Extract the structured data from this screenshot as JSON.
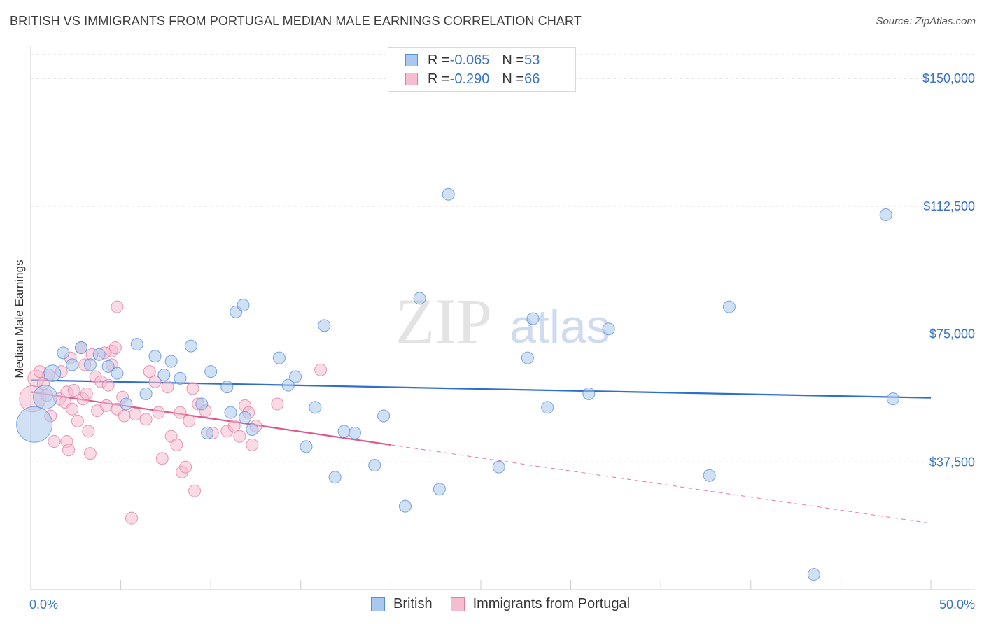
{
  "header": {
    "title": "BRITISH VS IMMIGRANTS FROM PORTUGAL MEDIAN MALE EARNINGS CORRELATION CHART",
    "source": "Source: ZipAtlas.com"
  },
  "watermark": {
    "zip": "ZIP",
    "atlas": "atlas"
  },
  "legend": {
    "rows": [
      {
        "r_label": "R = ",
        "r_value": "-0.065",
        "n_label": "N = ",
        "n_value": "53"
      },
      {
        "r_label": "R = ",
        "r_value": "-0.290",
        "n_label": "N = ",
        "n_value": "66"
      }
    ]
  },
  "bottom_legend": {
    "british": "British",
    "portugal": "Immigrants from Portugal"
  },
  "colors": {
    "british_fill": "#a9c8ef",
    "british_stroke": "#5b8fd4",
    "british_line": "#2f6fcb",
    "portugal_fill": "#f6bcd0",
    "portugal_stroke": "#e07fa2",
    "portugal_line": "#e0578a",
    "tick_text": "#3a74c4",
    "grid": "#d9d9d9"
  },
  "chart_data": {
    "type": "scatter",
    "title": "BRITISH VS IMMIGRANTS FROM PORTUGAL MEDIAN MALE EARNINGS CORRELATION CHART",
    "xlabel": "",
    "ylabel": "Median Male Earnings",
    "xlim": [
      0,
      50
    ],
    "ylim": [
      0,
      157000
    ],
    "x_tick_labels": [
      "0.0%",
      "50.0%"
    ],
    "y_ticks": [
      37500,
      75000,
      112500,
      150000
    ],
    "y_tick_labels": [
      "$37,500",
      "$75,000",
      "$112,500",
      "$150,000"
    ],
    "grid": "horizontal dashed",
    "legend_position": "top-center",
    "series": [
      {
        "name": "British",
        "r": -0.065,
        "n": 53,
        "trend": {
          "x": [
            0,
            50
          ],
          "y": [
            61500,
            56300
          ]
        },
        "points": [
          {
            "x": 0.2,
            "y": 48500,
            "s": 3
          },
          {
            "x": 0.8,
            "y": 56500,
            "s": 2
          },
          {
            "x": 1.2,
            "y": 63500,
            "s": 1.4
          },
          {
            "x": 1.8,
            "y": 69500,
            "s": 1
          },
          {
            "x": 2.3,
            "y": 66000,
            "s": 1
          },
          {
            "x": 2.8,
            "y": 71000,
            "s": 1
          },
          {
            "x": 3.3,
            "y": 66000,
            "s": 1
          },
          {
            "x": 3.8,
            "y": 69000,
            "s": 1
          },
          {
            "x": 4.3,
            "y": 65500,
            "s": 1
          },
          {
            "x": 4.8,
            "y": 63500,
            "s": 1
          },
          {
            "x": 5.3,
            "y": 54500,
            "s": 1
          },
          {
            "x": 5.9,
            "y": 72000,
            "s": 1
          },
          {
            "x": 6.4,
            "y": 57500,
            "s": 1
          },
          {
            "x": 6.9,
            "y": 68500,
            "s": 1
          },
          {
            "x": 7.4,
            "y": 63000,
            "s": 1
          },
          {
            "x": 7.8,
            "y": 67000,
            "s": 1
          },
          {
            "x": 8.3,
            "y": 62000,
            "s": 1
          },
          {
            "x": 8.9,
            "y": 71500,
            "s": 1
          },
          {
            "x": 9.5,
            "y": 54500,
            "s": 1
          },
          {
            "x": 9.8,
            "y": 46000,
            "s": 1
          },
          {
            "x": 10.0,
            "y": 64000,
            "s": 1
          },
          {
            "x": 10.9,
            "y": 59500,
            "s": 1
          },
          {
            "x": 11.1,
            "y": 52000,
            "s": 1
          },
          {
            "x": 11.4,
            "y": 81500,
            "s": 1
          },
          {
            "x": 11.8,
            "y": 83500,
            "s": 1
          },
          {
            "x": 11.9,
            "y": 50500,
            "s": 1
          },
          {
            "x": 12.3,
            "y": 47000,
            "s": 1
          },
          {
            "x": 13.8,
            "y": 68000,
            "s": 1
          },
          {
            "x": 14.3,
            "y": 60000,
            "s": 1
          },
          {
            "x": 14.7,
            "y": 62500,
            "s": 1
          },
          {
            "x": 15.3,
            "y": 42000,
            "s": 1
          },
          {
            "x": 15.8,
            "y": 53500,
            "s": 1
          },
          {
            "x": 16.3,
            "y": 77500,
            "s": 1
          },
          {
            "x": 16.9,
            "y": 33000,
            "s": 1
          },
          {
            "x": 17.4,
            "y": 46500,
            "s": 1
          },
          {
            "x": 18.0,
            "y": 46000,
            "s": 1
          },
          {
            "x": 19.1,
            "y": 36500,
            "s": 1
          },
          {
            "x": 19.6,
            "y": 51000,
            "s": 1
          },
          {
            "x": 20.8,
            "y": 24500,
            "s": 1
          },
          {
            "x": 21.6,
            "y": 85500,
            "s": 1
          },
          {
            "x": 22.7,
            "y": 29500,
            "s": 1
          },
          {
            "x": 23.2,
            "y": 116000,
            "s": 1
          },
          {
            "x": 26.0,
            "y": 36000,
            "s": 1
          },
          {
            "x": 27.6,
            "y": 68000,
            "s": 1
          },
          {
            "x": 27.9,
            "y": 79500,
            "s": 1
          },
          {
            "x": 28.7,
            "y": 53500,
            "s": 1
          },
          {
            "x": 31.0,
            "y": 57500,
            "s": 1
          },
          {
            "x": 32.1,
            "y": 76500,
            "s": 1
          },
          {
            "x": 37.7,
            "y": 33500,
            "s": 1
          },
          {
            "x": 38.8,
            "y": 83000,
            "s": 1
          },
          {
            "x": 43.5,
            "y": 4500,
            "s": 1
          },
          {
            "x": 47.5,
            "y": 110000,
            "s": 1
          },
          {
            "x": 47.9,
            "y": 56000,
            "s": 1
          }
        ]
      },
      {
        "name": "Immigrants from Portugal",
        "r": -0.29,
        "n": 66,
        "trend": {
          "x": [
            0,
            20
          ],
          "y": [
            58000,
            42500
          ],
          "dashed_to": {
            "x": 50,
            "y": 19500
          }
        },
        "points": [
          {
            "x": 0.1,
            "y": 56000,
            "s": 2.2
          },
          {
            "x": 0.3,
            "y": 62000,
            "s": 1.4
          },
          {
            "x": 0.5,
            "y": 64000,
            "s": 1
          },
          {
            "x": 0.7,
            "y": 60500,
            "s": 1
          },
          {
            "x": 0.9,
            "y": 57000,
            "s": 1
          },
          {
            "x": 1.1,
            "y": 51000,
            "s": 1
          },
          {
            "x": 1.3,
            "y": 43500,
            "s": 1
          },
          {
            "x": 1.6,
            "y": 56000,
            "s": 1
          },
          {
            "x": 1.7,
            "y": 64000,
            "s": 1
          },
          {
            "x": 1.9,
            "y": 55000,
            "s": 1
          },
          {
            "x": 2.0,
            "y": 58000,
            "s": 1
          },
          {
            "x": 2.0,
            "y": 43500,
            "s": 1
          },
          {
            "x": 2.1,
            "y": 41000,
            "s": 1
          },
          {
            "x": 2.3,
            "y": 53000,
            "s": 1
          },
          {
            "x": 2.4,
            "y": 58500,
            "s": 1
          },
          {
            "x": 2.6,
            "y": 49500,
            "s": 1
          },
          {
            "x": 2.8,
            "y": 71000,
            "s": 1
          },
          {
            "x": 2.9,
            "y": 56000,
            "s": 1
          },
          {
            "x": 3.1,
            "y": 57500,
            "s": 1
          },
          {
            "x": 3.2,
            "y": 46500,
            "s": 1
          },
          {
            "x": 3.3,
            "y": 40000,
            "s": 1
          },
          {
            "x": 3.4,
            "y": 69000,
            "s": 1
          },
          {
            "x": 3.6,
            "y": 62500,
            "s": 1
          },
          {
            "x": 3.7,
            "y": 52500,
            "s": 1
          },
          {
            "x": 3.9,
            "y": 61000,
            "s": 1
          },
          {
            "x": 4.1,
            "y": 69500,
            "s": 1
          },
          {
            "x": 4.2,
            "y": 54000,
            "s": 1
          },
          {
            "x": 4.3,
            "y": 60000,
            "s": 1
          },
          {
            "x": 4.5,
            "y": 66000,
            "s": 1
          },
          {
            "x": 4.5,
            "y": 70000,
            "s": 1
          },
          {
            "x": 4.7,
            "y": 71000,
            "s": 1
          },
          {
            "x": 4.8,
            "y": 83000,
            "s": 1
          },
          {
            "x": 4.8,
            "y": 53000,
            "s": 1
          },
          {
            "x": 5.1,
            "y": 56500,
            "s": 1
          },
          {
            "x": 5.2,
            "y": 51000,
            "s": 1
          },
          {
            "x": 5.6,
            "y": 21000,
            "s": 1
          },
          {
            "x": 5.8,
            "y": 51500,
            "s": 1
          },
          {
            "x": 6.4,
            "y": 50000,
            "s": 1
          },
          {
            "x": 6.6,
            "y": 64000,
            "s": 1
          },
          {
            "x": 6.9,
            "y": 61000,
            "s": 1
          },
          {
            "x": 7.1,
            "y": 52000,
            "s": 1
          },
          {
            "x": 7.3,
            "y": 38500,
            "s": 1
          },
          {
            "x": 7.6,
            "y": 59500,
            "s": 1
          },
          {
            "x": 7.8,
            "y": 45000,
            "s": 1
          },
          {
            "x": 8.1,
            "y": 42500,
            "s": 1
          },
          {
            "x": 8.3,
            "y": 52000,
            "s": 1
          },
          {
            "x": 8.4,
            "y": 34500,
            "s": 1
          },
          {
            "x": 8.6,
            "y": 36000,
            "s": 1
          },
          {
            "x": 8.8,
            "y": 49500,
            "s": 1
          },
          {
            "x": 9.0,
            "y": 59000,
            "s": 1
          },
          {
            "x": 9.1,
            "y": 29000,
            "s": 1
          },
          {
            "x": 9.3,
            "y": 54500,
            "s": 1
          },
          {
            "x": 9.7,
            "y": 52500,
            "s": 1
          },
          {
            "x": 10.1,
            "y": 46000,
            "s": 1
          },
          {
            "x": 10.9,
            "y": 46500,
            "s": 1
          },
          {
            "x": 11.3,
            "y": 48000,
            "s": 1
          },
          {
            "x": 11.6,
            "y": 45000,
            "s": 1
          },
          {
            "x": 11.9,
            "y": 54000,
            "s": 1
          },
          {
            "x": 12.1,
            "y": 52000,
            "s": 1
          },
          {
            "x": 12.3,
            "y": 42500,
            "s": 1
          },
          {
            "x": 12.5,
            "y": 48000,
            "s": 1
          },
          {
            "x": 13.7,
            "y": 54500,
            "s": 1
          },
          {
            "x": 16.1,
            "y": 64500,
            "s": 1
          },
          {
            "x": 1.0,
            "y": 63000,
            "s": 1
          },
          {
            "x": 2.2,
            "y": 68000,
            "s": 1
          },
          {
            "x": 3.0,
            "y": 66000,
            "s": 1
          }
        ]
      }
    ]
  }
}
